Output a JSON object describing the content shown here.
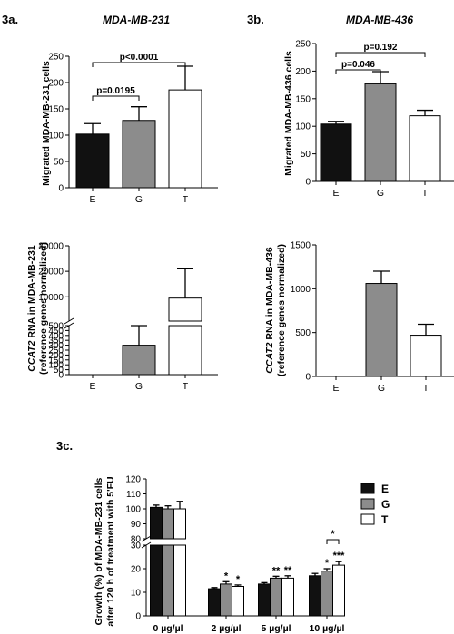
{
  "panels": {
    "a_label": "3a.",
    "a_title": "MDA-MB-231",
    "b_label": "3b.",
    "b_title": "MDA-MB-436",
    "c_label": "3c."
  },
  "chart_data": [
    {
      "id": "a_top",
      "type": "bar",
      "categories": [
        "E",
        "G",
        "T"
      ],
      "values": [
        102,
        128,
        186
      ],
      "errors": [
        20,
        26,
        45
      ],
      "ylabel": "Migrated MDA-MB-231 cells",
      "ylim": [
        0,
        250
      ],
      "yticks": [
        0,
        50,
        100,
        150,
        200,
        250
      ],
      "annotations": [
        {
          "text": "p=0.0195",
          "from": 0,
          "to": 1
        },
        {
          "text": "p<0.0001",
          "from": 0,
          "to": 2
        }
      ]
    },
    {
      "id": "b_top",
      "type": "bar",
      "categories": [
        "E",
        "G",
        "T"
      ],
      "values": [
        104,
        177,
        119
      ],
      "errors": [
        5,
        22,
        10
      ],
      "ylabel": "Migrated MDA-MB-436 cells",
      "ylim": [
        0,
        250
      ],
      "yticks": [
        0,
        50,
        100,
        150,
        200,
        250
      ],
      "annotations": [
        {
          "text": "p=0.046",
          "from": 0,
          "to": 1
        },
        {
          "text": "p=0.192",
          "from": 0,
          "to": 2
        }
      ]
    },
    {
      "id": "a_bottom",
      "type": "bar",
      "categories": [
        "E",
        "G",
        "T"
      ],
      "values": [
        0,
        300,
        9500
      ],
      "errors": [
        0,
        200,
        11500
      ],
      "ylabel_line1": "CCAT2 RNA in MDA-MB-231",
      "ylabel_line2": "(reference genes normalized)",
      "broken_axis": {
        "lower": [
          0,
          500
        ],
        "upper": [
          500,
          30000
        ]
      },
      "yticks_lower": [
        0,
        50,
        100,
        150,
        200,
        250,
        300,
        350,
        400,
        450,
        500
      ],
      "yticks_upper": [
        10000,
        20000,
        30000
      ]
    },
    {
      "id": "b_bottom",
      "type": "bar",
      "categories": [
        "E",
        "G",
        "T"
      ],
      "values": [
        0,
        1060,
        470
      ],
      "errors": [
        0,
        140,
        125
      ],
      "ylabel_line1": "CCAT2 RNA in MDA-MB-436",
      "ylabel_line2": "(reference genes normalized)",
      "ylim": [
        0,
        1500
      ],
      "yticks": [
        0,
        500,
        1000,
        1500
      ]
    },
    {
      "id": "c",
      "type": "bar",
      "categories": [
        "0 µg/µl",
        "2 µg/µl",
        "5 µg/µl",
        "10 µg/µl"
      ],
      "series": [
        {
          "name": "E",
          "color": "#111111",
          "values": [
            101,
            11.5,
            13.5,
            17
          ],
          "errors": [
            1.5,
            0.5,
            0.6,
            1.0
          ]
        },
        {
          "name": "G",
          "color": "#8c8c8c",
          "values": [
            100,
            13.5,
            16,
            19
          ],
          "errors": [
            2,
            1.0,
            0.8,
            1.0
          ]
        },
        {
          "name": "T",
          "color": "#ffffff",
          "values": [
            100,
            12.5,
            16,
            21.5
          ],
          "errors": [
            5,
            0.6,
            1.0,
            1.5
          ]
        }
      ],
      "significance": [
        [
          "",
          "",
          ""
        ],
        [
          "",
          "*",
          "*"
        ],
        [
          "",
          "**",
          "**"
        ],
        [
          "",
          "*",
          "***"
        ]
      ],
      "bracket": {
        "text": "*",
        "group": 3,
        "from": 1,
        "to": 2
      },
      "ylabel_line1": "Growth (%) of MDA-MB-231 cells",
      "ylabel_line2": "after 120 h of treatment with 5'FU",
      "broken_axis": {
        "lower": [
          0,
          30
        ],
        "upper": [
          80,
          120
        ]
      },
      "yticks_lower": [
        0,
        10,
        20,
        30
      ],
      "yticks_upper": [
        80,
        90,
        100,
        110,
        120
      ],
      "legend": [
        "E",
        "G",
        "T"
      ]
    }
  ]
}
